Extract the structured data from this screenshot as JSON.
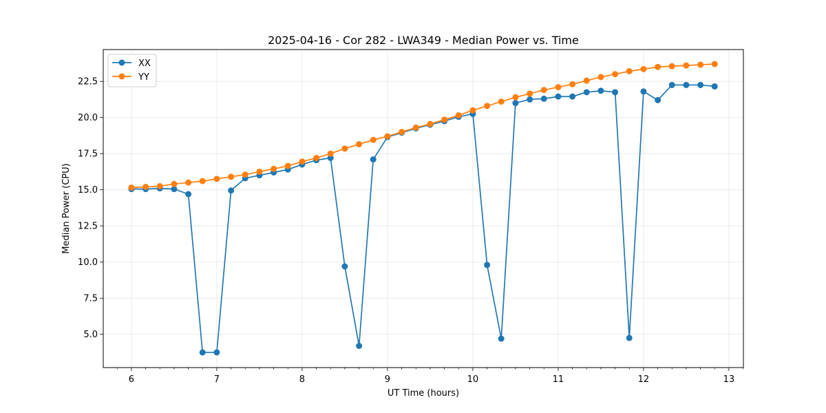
{
  "chart_data": {
    "type": "line",
    "title": "2025-04-16 - Cor 282 - LWA349 - Median Power vs. Time",
    "xlabel": "UT Time (hours)",
    "ylabel": "Median Power (CPU)",
    "xlim": [
      5.67,
      13.17
    ],
    "ylim": [
      2.7,
      24.7
    ],
    "xticks": [
      6,
      7,
      8,
      9,
      10,
      11,
      12,
      13
    ],
    "xtick_labels": [
      "6",
      "7",
      "8",
      "9",
      "10",
      "11",
      "12",
      "13"
    ],
    "yticks": [
      5.0,
      7.5,
      10.0,
      12.5,
      15.0,
      17.5,
      20.0,
      22.5
    ],
    "ytick_labels": [
      "5.0",
      "7.5",
      "10.0",
      "12.5",
      "15.0",
      "17.5",
      "20.0",
      "22.5"
    ],
    "grid": true,
    "legend_position": "top-left",
    "x": [
      6.0,
      6.167,
      6.333,
      6.5,
      6.667,
      6.833,
      7.0,
      7.167,
      7.333,
      7.5,
      7.667,
      7.833,
      8.0,
      8.167,
      8.333,
      8.5,
      8.667,
      8.833,
      9.0,
      9.167,
      9.333,
      9.5,
      9.667,
      9.833,
      10.0,
      10.167,
      10.333,
      10.5,
      10.667,
      10.833,
      11.0,
      11.167,
      11.333,
      11.5,
      11.667,
      11.833,
      12.0,
      12.167,
      12.333,
      12.5,
      12.667,
      12.833
    ],
    "series": [
      {
        "name": "XX",
        "color": "#1f77b4",
        "values": [
          15.05,
          15.05,
          15.1,
          15.05,
          14.7,
          3.75,
          3.75,
          14.95,
          15.8,
          16.0,
          16.2,
          16.4,
          16.75,
          17.05,
          17.2,
          9.7,
          4.2,
          17.1,
          18.65,
          18.95,
          19.25,
          19.5,
          19.75,
          20.05,
          20.25,
          9.8,
          4.7,
          21.0,
          21.25,
          21.3,
          21.45,
          21.45,
          21.75,
          21.85,
          21.75,
          4.75,
          21.8,
          21.2,
          22.25,
          22.25,
          22.25,
          22.15
        ]
      },
      {
        "name": "YY",
        "color": "#ff7f0e",
        "values": [
          15.15,
          15.2,
          15.25,
          15.4,
          15.5,
          15.6,
          15.75,
          15.9,
          16.05,
          16.25,
          16.45,
          16.65,
          16.95,
          17.2,
          17.5,
          17.85,
          18.15,
          18.45,
          18.7,
          19.0,
          19.3,
          19.55,
          19.85,
          20.15,
          20.5,
          20.8,
          21.1,
          21.4,
          21.65,
          21.9,
          22.1,
          22.3,
          22.55,
          22.8,
          23.0,
          23.2,
          23.35,
          23.5,
          23.55,
          23.6,
          23.65,
          23.7
        ]
      }
    ]
  }
}
